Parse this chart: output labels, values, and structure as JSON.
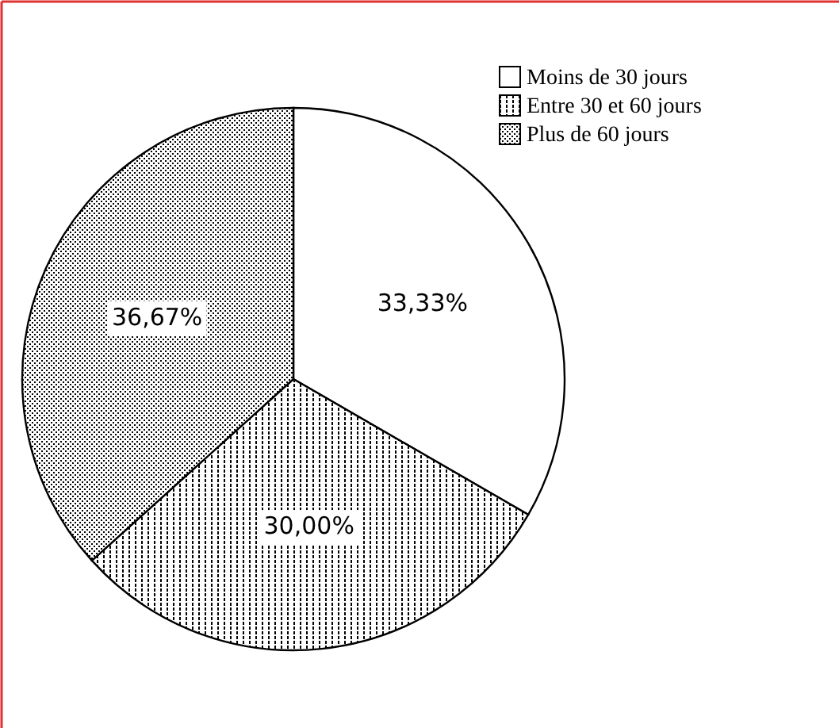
{
  "chart_data": {
    "type": "pie",
    "categories": [
      "Moins de 30 jours",
      "Entre 30 et 60 jours",
      "Plus de 60 jours"
    ],
    "values": [
      33.33,
      30.0,
      36.67
    ],
    "value_labels": [
      "33,33%",
      "30,00%",
      "36,67%"
    ],
    "colors": [
      "#ffffff",
      "#000000",
      "#000000"
    ],
    "legend": "top right"
  }
}
